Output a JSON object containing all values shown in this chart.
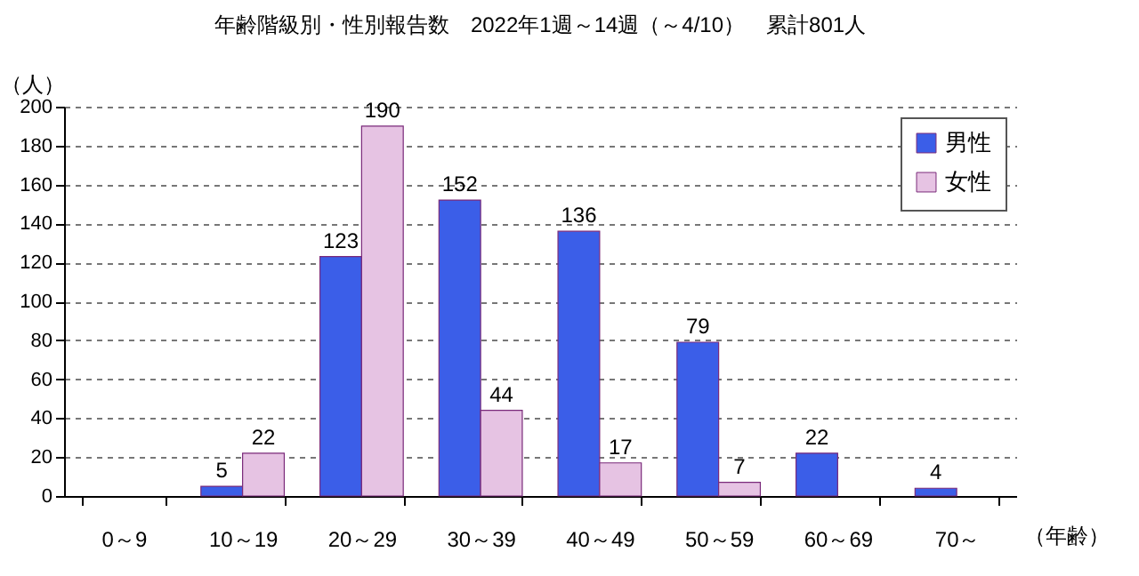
{
  "chart_data": {
    "type": "bar",
    "title": "年齢階級別・性別報告数　2022年1週～14週（～4/10）　累計801人",
    "xlabel": "（年齢）",
    "ylabel": "（人）",
    "categories": [
      "0～9",
      "10～19",
      "20～29",
      "30～39",
      "40～49",
      "50～59",
      "60～69",
      "70～"
    ],
    "series": [
      {
        "name": "男性",
        "color": "#3b5ee8",
        "values": [
          null,
          5,
          123,
          152,
          136,
          79,
          22,
          4
        ]
      },
      {
        "name": "女性",
        "color": "#e6c3e3",
        "values": [
          null,
          22,
          190,
          44,
          17,
          7,
          null,
          null
        ]
      }
    ],
    "ylim": [
      0,
      200
    ],
    "yticks": [
      0,
      20,
      40,
      60,
      80,
      100,
      120,
      140,
      160,
      180,
      200
    ],
    "grid": "y",
    "legend": "top right",
    "data_labels": true
  }
}
